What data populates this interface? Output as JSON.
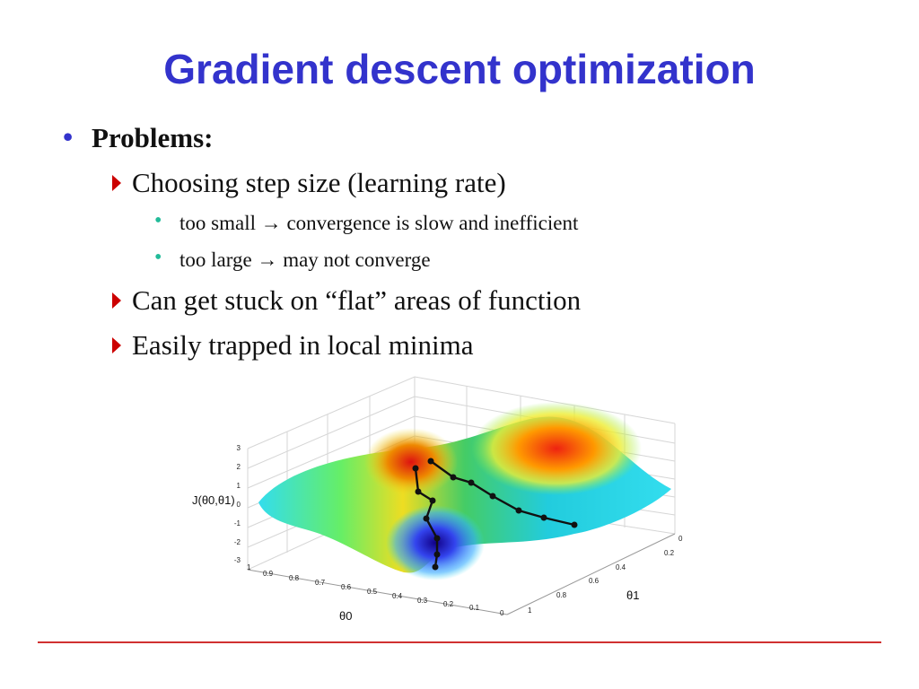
{
  "slide": {
    "title": "Gradient descent optimization",
    "bullets": {
      "heading": "Problems:",
      "items": [
        {
          "text": "Choosing step size (learning rate)",
          "subitems": [
            "too small → convergence is slow and inefficient",
            "too large → may not converge"
          ]
        },
        {
          "text": "Can get stuck on “flat” areas of function"
        },
        {
          "text": "Easily trapped in local minima"
        }
      ]
    }
  },
  "figure": {
    "z_axis_label": "J(θ0,θ1)",
    "x_axis_label": "θ0",
    "y_axis_label": "θ1",
    "z_ticks": [
      "3",
      "2",
      "1",
      "0",
      "-1",
      "-2",
      "-3"
    ],
    "x_ticks": [
      "1",
      "0.9",
      "0.8",
      "0.7",
      "0.6",
      "0.5",
      "0.4",
      "0.3",
      "0.2",
      "0.1",
      "0"
    ],
    "y_ticks": [
      "0",
      "0.2",
      "0.4",
      "0.6",
      "0.8",
      "1"
    ],
    "colors": {
      "title": "#3333cc",
      "bullet_triangle": "#cc0000",
      "sub_bullet": "#22bb99",
      "rule": "#d03030"
    }
  }
}
